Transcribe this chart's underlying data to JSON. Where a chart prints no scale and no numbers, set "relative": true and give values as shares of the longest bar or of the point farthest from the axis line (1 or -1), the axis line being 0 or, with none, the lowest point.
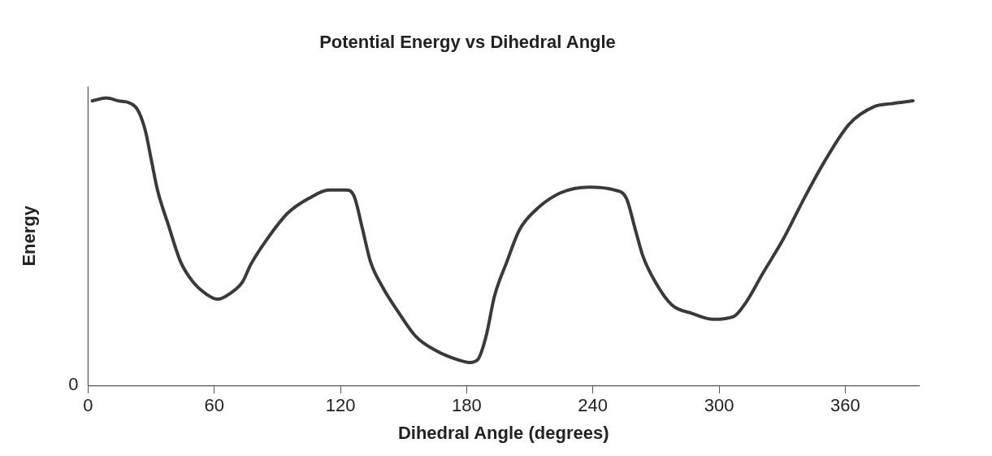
{
  "chart_data": {
    "type": "line",
    "title": "Potential Energy vs Dihedral Angle",
    "xlabel": "Dihedral Angle (degrees)",
    "ylabel": "Energy",
    "relative": true,
    "annotations": [
      "0"
    ],
    "xlim": [
      0,
      395
    ],
    "xticks": [
      0,
      60,
      120,
      180,
      240,
      300,
      360
    ],
    "grid": false,
    "legend": false,
    "marker": "none",
    "line_style": "solid",
    "series": [
      {
        "color": "#3a3a3a",
        "x": [
          2,
          8.6,
          14.5,
          22.4,
          27.1,
          30.2,
          33,
          38.1,
          44,
          49.9,
          55.8,
          61.6,
          67.5,
          73.4,
          77.3,
          85.2,
          95,
          104.8,
          114.6,
          122.5,
          126.4,
          130.3,
          134.3,
          140.2,
          148,
          155.9,
          165.7,
          175.5,
          181.4,
          185.3,
          189.2,
          193.2,
          199.1,
          205,
          212.8,
          224.6,
          238.3,
          250.1,
          256,
          259.9,
          263.8,
          269.7,
          277.6,
          287.4,
          297.2,
          307,
          312.9,
          320.8,
          330.6,
          340.4,
          350.2,
          362,
          373.8,
          381.6,
          392.2
        ],
        "values": [
          0.99,
          1,
          0.99,
          0.97,
          0.89,
          0.78,
          0.68,
          0.56,
          0.43,
          0.36,
          0.32,
          0.3,
          0.32,
          0.36,
          0.42,
          0.51,
          0.6,
          0.65,
          0.68,
          0.68,
          0.66,
          0.55,
          0.43,
          0.34,
          0.25,
          0.17,
          0.12,
          0.09,
          0.08,
          0.09,
          0.17,
          0.31,
          0.43,
          0.54,
          0.61,
          0.67,
          0.69,
          0.68,
          0.65,
          0.55,
          0.45,
          0.36,
          0.28,
          0.25,
          0.23,
          0.24,
          0.29,
          0.39,
          0.51,
          0.65,
          0.78,
          0.91,
          0.97,
          0.98,
          0.99
        ]
      }
    ]
  }
}
